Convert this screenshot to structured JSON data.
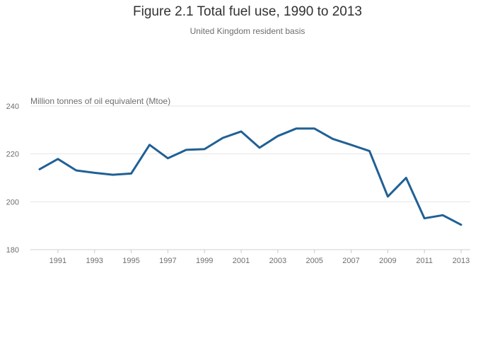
{
  "chart_data": {
    "type": "line",
    "title": "Figure 2.1 Total fuel use, 1990 to 2013",
    "subtitle": "United Kingdom resident basis",
    "ylabel": "Million tonnes of oil equivalent (Mtoe)",
    "xlabel": "",
    "ylim": [
      180,
      240
    ],
    "y_ticks": [
      180,
      200,
      220,
      240
    ],
    "x_ticks": [
      1991,
      1993,
      1995,
      1997,
      1999,
      2001,
      2003,
      2005,
      2007,
      2009,
      2011,
      2013
    ],
    "grid": true,
    "legend": "none",
    "series": [
      {
        "name": "Total fuel use",
        "color": "#206095",
        "x": [
          1990,
          1991,
          1992,
          1993,
          1994,
          1995,
          1996,
          1997,
          1998,
          1999,
          2000,
          2001,
          2002,
          2003,
          2004,
          2005,
          2006,
          2007,
          2008,
          2009,
          2010,
          2011,
          2012,
          2013
        ],
        "values": [
          213.6,
          217.9,
          213.1,
          212.1,
          211.3,
          211.8,
          223.8,
          218.2,
          221.7,
          222.0,
          226.7,
          229.4,
          222.6,
          227.5,
          230.6,
          230.6,
          226.3,
          223.8,
          221.2,
          202.2,
          210.0,
          193.1,
          194.4,
          190.4
        ]
      }
    ]
  }
}
